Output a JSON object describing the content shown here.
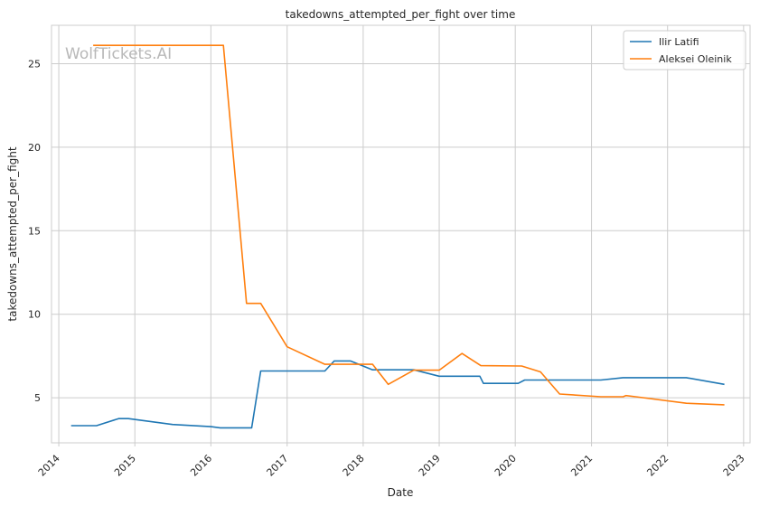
{
  "chart_data": {
    "type": "line",
    "title": "takedowns_attempted_per_fight over time",
    "xlabel": "Date",
    "ylabel": "takedowns_attempted_per_fight",
    "watermark": "WolfTickets.AI",
    "x_ticks": [
      "2014",
      "2015",
      "2016",
      "2017",
      "2018",
      "2019",
      "2020",
      "2021",
      "2022",
      "2023"
    ],
    "y_ticks": [
      "5",
      "10",
      "15",
      "20",
      "25"
    ],
    "xlim": [
      "2013-11-27",
      "2023-02-01"
    ],
    "ylim": [
      2.3,
      27.3
    ],
    "grid": true,
    "legend_position": "top-right",
    "series": [
      {
        "name": "Ilir Latifi",
        "color": "#1f77b4",
        "points": [
          [
            "2014-03-01",
            3.33
          ],
          [
            "2014-07-01",
            3.33
          ],
          [
            "2014-10-15",
            3.75
          ],
          [
            "2014-12-01",
            3.75
          ],
          [
            "2015-07-01",
            3.4
          ],
          [
            "2016-01-01",
            3.27
          ],
          [
            "2016-02-15",
            3.2
          ],
          [
            "2016-07-15",
            3.2
          ],
          [
            "2016-08-27",
            6.6
          ],
          [
            "2017-07-01",
            6.6
          ],
          [
            "2017-08-15",
            7.2
          ],
          [
            "2017-11-01",
            7.2
          ],
          [
            "2018-02-15",
            6.67
          ],
          [
            "2018-09-01",
            6.67
          ],
          [
            "2019-01-01",
            6.29
          ],
          [
            "2019-07-15",
            6.29
          ],
          [
            "2019-08-01",
            5.86
          ],
          [
            "2020-01-15",
            5.86
          ],
          [
            "2020-02-15",
            6.06
          ],
          [
            "2021-02-15",
            6.06
          ],
          [
            "2021-06-01",
            6.2
          ],
          [
            "2022-04-01",
            6.2
          ],
          [
            "2022-10-01",
            5.8
          ]
        ]
      },
      {
        "name": "Aleksei Oleinik",
        "color": "#ff7f0e",
        "points": [
          [
            "2014-06-15",
            26.1
          ],
          [
            "2016-03-01",
            26.1
          ],
          [
            "2016-06-20",
            10.65
          ],
          [
            "2016-08-27",
            10.65
          ],
          [
            "2017-01-01",
            8.05
          ],
          [
            "2017-07-01",
            7.0
          ],
          [
            "2018-02-15",
            7.0
          ],
          [
            "2018-05-01",
            5.8
          ],
          [
            "2018-09-01",
            6.65
          ],
          [
            "2019-01-01",
            6.65
          ],
          [
            "2019-04-20",
            7.65
          ],
          [
            "2019-07-20",
            6.92
          ],
          [
            "2020-02-01",
            6.9
          ],
          [
            "2020-05-01",
            6.55
          ],
          [
            "2020-08-01",
            5.22
          ],
          [
            "2021-02-15",
            5.06
          ],
          [
            "2021-06-01",
            5.06
          ],
          [
            "2021-06-15",
            5.13
          ],
          [
            "2021-08-01",
            5.06
          ],
          [
            "2022-04-01",
            4.67
          ],
          [
            "2022-10-01",
            4.58
          ]
        ]
      }
    ]
  }
}
